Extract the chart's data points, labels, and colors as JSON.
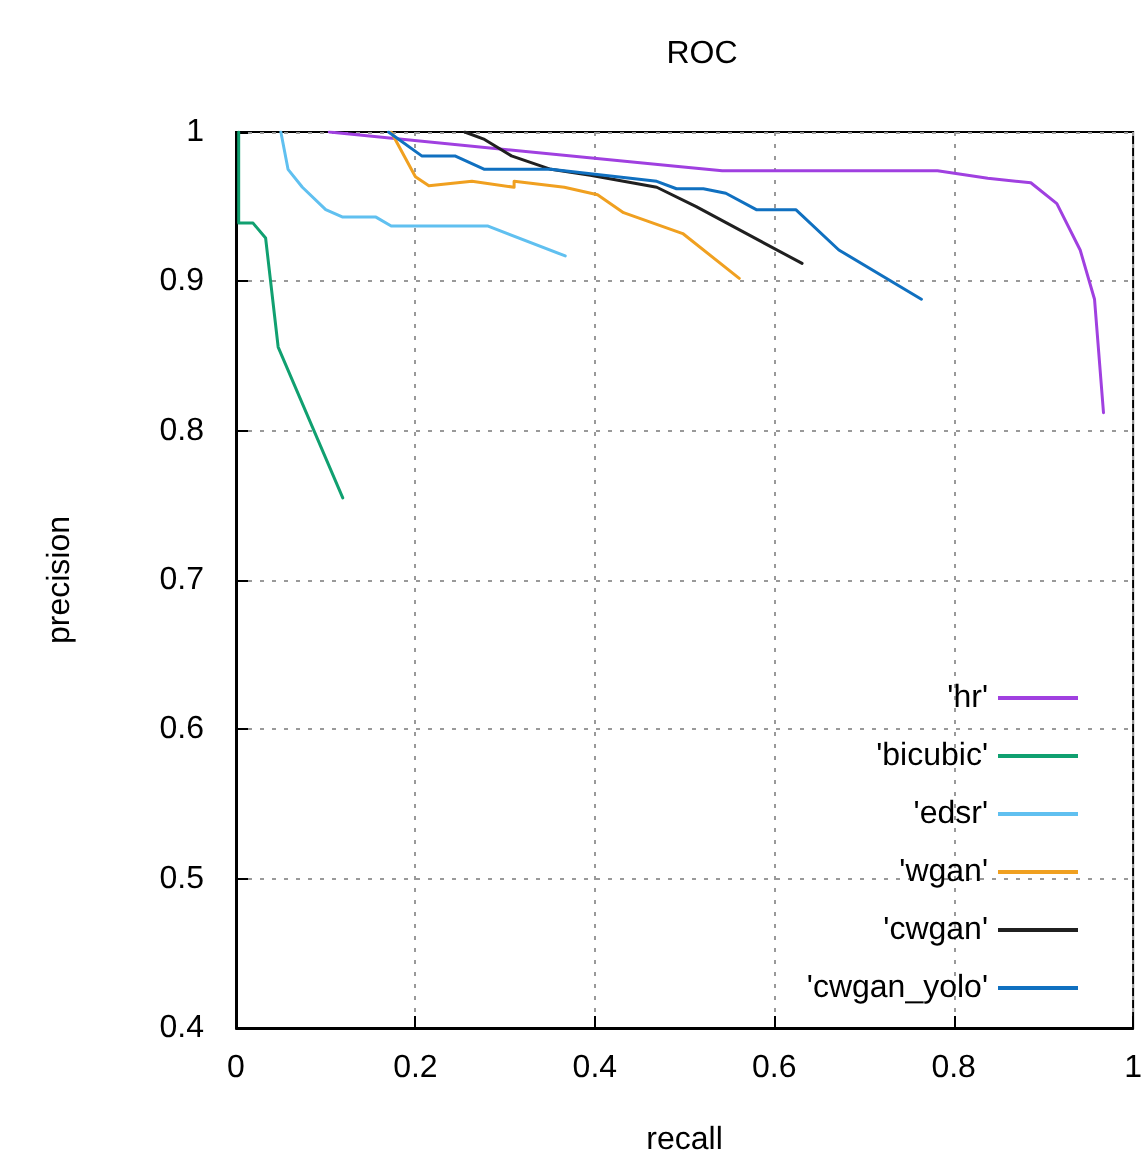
{
  "chart_data": {
    "type": "line",
    "title": "ROC",
    "xlabel": "recall",
    "ylabel": "precision",
    "xlim": [
      0,
      1
    ],
    "ylim": [
      0.4,
      1
    ],
    "xticks": [
      0,
      0.2,
      0.4,
      0.6,
      0.8,
      1
    ],
    "yticks": [
      0.4,
      0.5,
      0.6,
      0.7,
      0.8,
      0.9,
      1
    ],
    "grid": true,
    "legend": "bottom right",
    "marker": "none",
    "line_style": "solid",
    "series": [
      {
        "name": "'hr'",
        "color": "#a040e0",
        "x": [
          0.104,
          0.49,
          0.542,
          0.782,
          0.838,
          0.886,
          0.915,
          0.941,
          0.957,
          0.967
        ],
        "values": [
          1,
          0.977,
          0.974,
          0.974,
          0.969,
          0.966,
          0.952,
          0.921,
          0.888,
          0.812
        ]
      },
      {
        "name": "'bicubic'",
        "color": "#10a070",
        "x": [
          0.003,
          0.003,
          0.019,
          0.033,
          0.047,
          0.119
        ],
        "values": [
          1,
          0.939,
          0.939,
          0.929,
          0.856,
          0.755
        ]
      },
      {
        "name": "'edsr'",
        "color": "#60c0f0",
        "x": [
          0.05,
          0.058,
          0.074,
          0.1,
          0.119,
          0.156,
          0.173,
          0.281,
          0.367
        ],
        "values": [
          1,
          0.975,
          0.963,
          0.948,
          0.943,
          0.943,
          0.937,
          0.937,
          0.917
        ]
      },
      {
        "name": "'wgan'",
        "color": "#f0a020",
        "x": [
          0.173,
          0.2,
          0.215,
          0.263,
          0.31,
          0.31,
          0.366,
          0.403,
          0.432,
          0.498,
          0.561
        ],
        "values": [
          1,
          0.97,
          0.964,
          0.967,
          0.963,
          0.967,
          0.963,
          0.958,
          0.946,
          0.932,
          0.902
        ]
      },
      {
        "name": "'cwgan'",
        "color": "#202020",
        "x": [
          0.255,
          0.277,
          0.307,
          0.351,
          0.395,
          0.469,
          0.513,
          0.631
        ],
        "values": [
          1,
          0.995,
          0.984,
          0.975,
          0.971,
          0.963,
          0.95,
          0.912
        ]
      },
      {
        "name": "'cwgan_yolo'",
        "color": "#1070c0",
        "x": [
          0.17,
          0.207,
          0.244,
          0.277,
          0.351,
          0.41,
          0.469,
          0.491,
          0.521,
          0.546,
          0.58,
          0.624,
          0.672,
          0.764
        ],
        "values": [
          1,
          0.984,
          0.984,
          0.975,
          0.975,
          0.971,
          0.967,
          0.962,
          0.962,
          0.959,
          0.948,
          0.948,
          0.921,
          0.888
        ]
      }
    ]
  }
}
